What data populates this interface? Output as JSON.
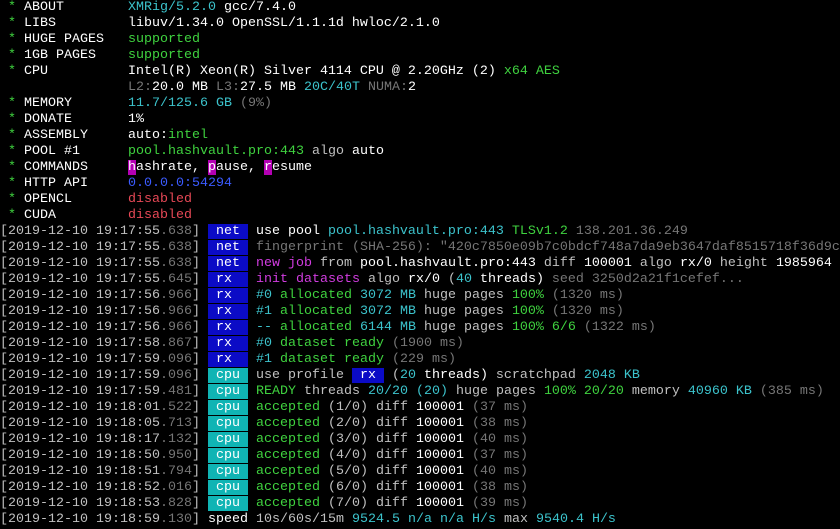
{
  "colors": {
    "W": "#ffffff",
    "L": "#c0c0c0",
    "D": "#767676",
    "G": "#3fd23f",
    "C": "#3cc3cc",
    "M": "#d13ce0",
    "B": "#3b5bff",
    "R": "#e74856",
    "tag_net_rx_bg": "#0b0bc6",
    "tag_cpu_bg": "#10b4b4"
  },
  "header": [
    {
      "label": "ABOUT",
      "segs": [
        [
          "XMRig/5.2.0",
          "C"
        ],
        [
          " gcc/7.4.0",
          "W"
        ]
      ]
    },
    {
      "label": "LIBS",
      "segs": [
        [
          "libuv/1.34.0 OpenSSL/1.1.1d hwloc/2.1.0",
          "W"
        ]
      ]
    },
    {
      "label": "HUGE PAGES",
      "segs": [
        [
          "supported",
          "G"
        ]
      ]
    },
    {
      "label": "1GB PAGES",
      "segs": [
        [
          "supported",
          "G"
        ]
      ]
    },
    {
      "label": "CPU",
      "segs": [
        [
          "Intel(R) Xeon(R) Silver 4114 CPU @ 2.20GHz (2)",
          "W"
        ],
        [
          " x64 AES",
          "G"
        ]
      ]
    },
    {
      "label": "",
      "nostar": true,
      "segs": [
        [
          "L2:",
          "D"
        ],
        [
          "20.0 MB",
          "W"
        ],
        [
          " L3:",
          "D"
        ],
        [
          "27.5 MB",
          "W"
        ],
        [
          " ",
          "L"
        ],
        [
          "20C/40T",
          "C"
        ],
        [
          " NUMA:",
          "D"
        ],
        [
          "2",
          "W"
        ]
      ]
    },
    {
      "label": "MEMORY",
      "segs": [
        [
          "11.7/125.6 GB",
          "C"
        ],
        [
          " (9%)",
          "D"
        ]
      ]
    },
    {
      "label": "DONATE",
      "segs": [
        [
          "1%",
          "W"
        ]
      ]
    },
    {
      "label": "ASSEMBLY",
      "segs": [
        [
          "auto:",
          "W"
        ],
        [
          "intel",
          "G"
        ]
      ]
    },
    {
      "label": "POOL #1",
      "segs": [
        [
          "pool.hashvault.pro:443",
          "G"
        ],
        [
          " algo ",
          "L"
        ],
        [
          "auto",
          "W"
        ]
      ]
    },
    {
      "label": "COMMANDS",
      "segs": [
        [
          "h",
          "bg-mag"
        ],
        [
          "ashrate, ",
          "W"
        ],
        [
          "p",
          "bg-mag"
        ],
        [
          "ause, ",
          "W"
        ],
        [
          "r",
          "bg-mag"
        ],
        [
          "esume",
          "W"
        ]
      ]
    },
    {
      "label": "HTTP API",
      "segs": [
        [
          "0.0.0.0:54294",
          "B"
        ]
      ]
    },
    {
      "label": "OPENCL",
      "segs": [
        [
          "disabled",
          "R"
        ]
      ]
    },
    {
      "label": "CUDA",
      "segs": [
        [
          "disabled",
          "R"
        ]
      ]
    }
  ],
  "log": [
    {
      "ts": "2019-12-10 19:17:55",
      "ms": ".638",
      "tag": "net",
      "segs": [
        [
          "use pool ",
          "W"
        ],
        [
          "pool.hashvault.pro:443",
          "C"
        ],
        [
          " TLSv1.2",
          "G"
        ],
        [
          " 138.201.36.249",
          "D"
        ]
      ]
    },
    {
      "ts": "2019-12-10 19:17:55",
      "ms": ".638",
      "tag": "net",
      "segs": [
        [
          "fingerprint (SHA-256): \"420c7850e09b7c0bdcf748a7da9eb3647daf8515718f36d9c",
          "D"
        ]
      ]
    },
    {
      "ts": "2019-12-10 19:17:55",
      "ms": ".638",
      "tag": "net",
      "segs": [
        [
          "new job",
          "M"
        ],
        [
          " from ",
          "L"
        ],
        [
          "pool.hashvault.pro:443",
          "W"
        ],
        [
          " diff ",
          "L"
        ],
        [
          "100001",
          "W"
        ],
        [
          " algo ",
          "L"
        ],
        [
          "rx/0",
          "W"
        ],
        [
          " height ",
          "L"
        ],
        [
          "1985964",
          "W"
        ]
      ]
    },
    {
      "ts": "2019-12-10 19:17:55",
      "ms": ".645",
      "tag": "rx",
      "segs": [
        [
          "init datasets",
          "M"
        ],
        [
          " algo ",
          "L"
        ],
        [
          "rx/0",
          "W"
        ],
        [
          " (",
          "L"
        ],
        [
          "40",
          "C"
        ],
        [
          " threads)",
          "W"
        ],
        [
          " seed 3250d2a21f1cefef...",
          "D"
        ]
      ]
    },
    {
      "ts": "2019-12-10 19:17:56",
      "ms": ".966",
      "tag": "rx",
      "segs": [
        [
          "#0",
          "C"
        ],
        [
          " allocated",
          "G"
        ],
        [
          " 3072 MB",
          "C"
        ],
        [
          " huge pages ",
          "L"
        ],
        [
          "100%",
          "G"
        ],
        [
          " (1320 ms)",
          "D"
        ]
      ]
    },
    {
      "ts": "2019-12-10 19:17:56",
      "ms": ".966",
      "tag": "rx",
      "segs": [
        [
          "#1",
          "C"
        ],
        [
          " allocated",
          "G"
        ],
        [
          " 3072 MB",
          "C"
        ],
        [
          " huge pages ",
          "L"
        ],
        [
          "100%",
          "G"
        ],
        [
          " (1320 ms)",
          "D"
        ]
      ]
    },
    {
      "ts": "2019-12-10 19:17:56",
      "ms": ".966",
      "tag": "rx",
      "segs": [
        [
          "--",
          "C"
        ],
        [
          " allocated",
          "G"
        ],
        [
          " 6144 MB",
          "C"
        ],
        [
          " huge pages ",
          "L"
        ],
        [
          "100% 6/6",
          "G"
        ],
        [
          " (1322 ms)",
          "D"
        ]
      ]
    },
    {
      "ts": "2019-12-10 19:17:58",
      "ms": ".867",
      "tag": "rx",
      "segs": [
        [
          "#0",
          "C"
        ],
        [
          " dataset ready",
          "G"
        ],
        [
          " (1900 ms)",
          "D"
        ]
      ]
    },
    {
      "ts": "2019-12-10 19:17:59",
      "ms": ".096",
      "tag": "rx",
      "segs": [
        [
          "#1",
          "C"
        ],
        [
          " dataset ready",
          "G"
        ],
        [
          " (229 ms)",
          "D"
        ]
      ]
    },
    {
      "ts": "2019-12-10 19:17:59",
      "ms": ".096",
      "tag": "cpu",
      "segs": [
        [
          "use profile ",
          "L"
        ],
        [
          " rx ",
          "bg-blue"
        ],
        [
          " (",
          "L"
        ],
        [
          "20",
          "C"
        ],
        [
          " threads)",
          "W"
        ],
        [
          " scratchpad ",
          "L"
        ],
        [
          "2048 KB",
          "C"
        ]
      ]
    },
    {
      "ts": "2019-12-10 19:17:59",
      "ms": ".481",
      "tag": "cpu",
      "segs": [
        [
          "READY",
          "G"
        ],
        [
          " threads ",
          "L"
        ],
        [
          "20/20",
          "C"
        ],
        [
          " (20)",
          "C"
        ],
        [
          " huge pages ",
          "L"
        ],
        [
          "100% 20/20",
          "G"
        ],
        [
          " memory ",
          "L"
        ],
        [
          "40960 KB",
          "C"
        ],
        [
          " (385 ms)",
          "D"
        ]
      ]
    },
    {
      "ts": "2019-12-10 19:18:01",
      "ms": ".522",
      "tag": "cpu",
      "segs": [
        [
          "accepted",
          "G"
        ],
        [
          " (1/0)",
          "L"
        ],
        [
          " diff ",
          "L"
        ],
        [
          "100001",
          "W"
        ],
        [
          " (37 ms)",
          "D"
        ]
      ]
    },
    {
      "ts": "2019-12-10 19:18:05",
      "ms": ".713",
      "tag": "cpu",
      "segs": [
        [
          "accepted",
          "G"
        ],
        [
          " (2/0)",
          "L"
        ],
        [
          " diff ",
          "L"
        ],
        [
          "100001",
          "W"
        ],
        [
          " (38 ms)",
          "D"
        ]
      ]
    },
    {
      "ts": "2019-12-10 19:18:17",
      "ms": ".132",
      "tag": "cpu",
      "segs": [
        [
          "accepted",
          "G"
        ],
        [
          " (3/0)",
          "L"
        ],
        [
          " diff ",
          "L"
        ],
        [
          "100001",
          "W"
        ],
        [
          " (40 ms)",
          "D"
        ]
      ]
    },
    {
      "ts": "2019-12-10 19:18:50",
      "ms": ".950",
      "tag": "cpu",
      "segs": [
        [
          "accepted",
          "G"
        ],
        [
          " (4/0)",
          "L"
        ],
        [
          " diff ",
          "L"
        ],
        [
          "100001",
          "W"
        ],
        [
          " (37 ms)",
          "D"
        ]
      ]
    },
    {
      "ts": "2019-12-10 19:18:51",
      "ms": ".794",
      "tag": "cpu",
      "segs": [
        [
          "accepted",
          "G"
        ],
        [
          " (5/0)",
          "L"
        ],
        [
          " diff ",
          "L"
        ],
        [
          "100001",
          "W"
        ],
        [
          " (40 ms)",
          "D"
        ]
      ]
    },
    {
      "ts": "2019-12-10 19:18:52",
      "ms": ".016",
      "tag": "cpu",
      "segs": [
        [
          "accepted",
          "G"
        ],
        [
          " (6/0)",
          "L"
        ],
        [
          " diff ",
          "L"
        ],
        [
          "100001",
          "W"
        ],
        [
          " (38 ms)",
          "D"
        ]
      ]
    },
    {
      "ts": "2019-12-10 19:18:53",
      "ms": ".828",
      "tag": "cpu",
      "segs": [
        [
          "accepted",
          "G"
        ],
        [
          " (7/0)",
          "L"
        ],
        [
          " diff ",
          "L"
        ],
        [
          "100001",
          "W"
        ],
        [
          " (39 ms)",
          "D"
        ]
      ]
    },
    {
      "ts": "2019-12-10 19:18:59",
      "ms": ".130",
      "tag": "",
      "segs": [
        [
          "speed",
          "W"
        ],
        [
          " 10s/60s/15m ",
          "L"
        ],
        [
          "9524.5",
          "C"
        ],
        [
          " n/a n/a",
          "C"
        ],
        [
          " H/s",
          "C"
        ],
        [
          " max ",
          "L"
        ],
        [
          "9540.4 H/s",
          "C"
        ]
      ]
    }
  ]
}
